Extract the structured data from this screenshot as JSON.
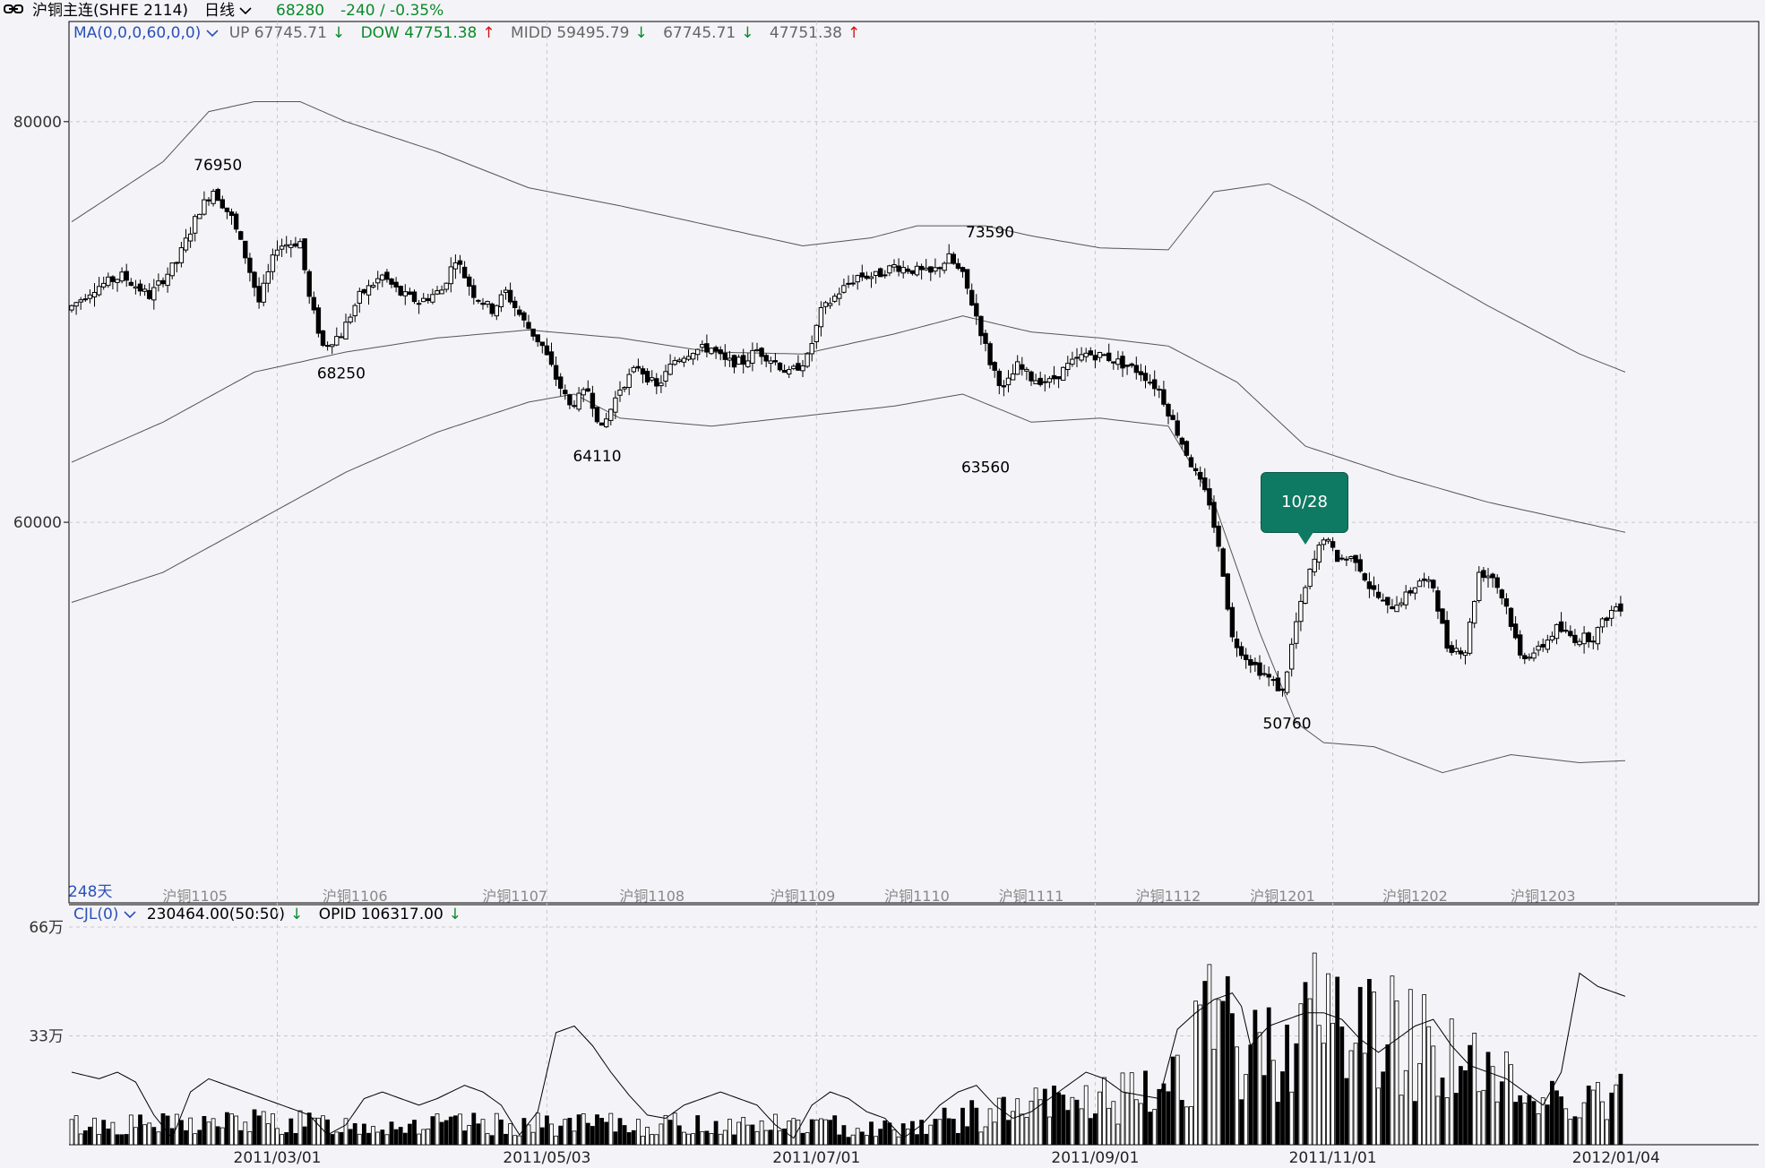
{
  "header": {
    "symbol_icon": "link-icon",
    "symbol": "沪铜主连(SHFE 2114)",
    "period": "日线",
    "price": "68280",
    "change": "-240 / -0.35%"
  },
  "price_legend": {
    "indicator": "MA(0,0,0,60,0,0)",
    "up": "UP 67745.71",
    "dow": "DOW 47751.38",
    "midd": "MIDD 59495.79",
    "v1": "67745.71",
    "v2": "47751.38"
  },
  "volume_legend": {
    "indicator": "CJL(0)",
    "vol": "230464.00(50:50)",
    "opid": "OPID 106317.00"
  },
  "days_label": "248天",
  "tooltip": "10/28",
  "colors": {
    "up_candle": "#ffffff",
    "down_candle": "#000000",
    "band": "#555555",
    "grid": "#c8c8c8",
    "tooltip": "#0f7a63"
  },
  "chart_data": {
    "type": "candlestick",
    "y_ticks": [
      "80000",
      "60000"
    ],
    "ylim": [
      41000,
      85000
    ],
    "volume_ticks": [
      "66万",
      "33万"
    ],
    "volume_ylim": [
      0,
      66
    ],
    "contract_labels": [
      {
        "day": 27,
        "label": "沪铜1105"
      },
      {
        "day": 62,
        "label": "沪铜1106"
      },
      {
        "day": 97,
        "label": "沪铜1107"
      },
      {
        "day": 127,
        "label": "沪铜1108"
      },
      {
        "day": 160,
        "label": "沪铜1109"
      },
      {
        "day": 185,
        "label": "沪铜1110"
      },
      {
        "day": 210,
        "label": "沪铜1111"
      },
      {
        "day": 240,
        "label": "沪铜1112"
      },
      {
        "day": 265,
        "label": "沪铜1201"
      },
      {
        "day": 294,
        "label": "沪铜1202"
      },
      {
        "day": 322,
        "label": "沪铜1203"
      }
    ],
    "date_labels": [
      {
        "day": 45,
        "label": "2011/03/01"
      },
      {
        "day": 104,
        "label": "2011/05/03"
      },
      {
        "day": 163,
        "label": "2011/07/01"
      },
      {
        "day": 224,
        "label": "2011/09/01"
      },
      {
        "day": 276,
        "label": "2011/11/01"
      },
      {
        "day": 338,
        "label": "2012/01/04"
      }
    ],
    "annotations": [
      {
        "day": 32,
        "price": 76950,
        "label": "76950",
        "pos": "above"
      },
      {
        "day": 59,
        "price": 68250,
        "label": "68250",
        "pos": "below"
      },
      {
        "day": 115,
        "price": 64110,
        "label": "64110",
        "pos": "below"
      },
      {
        "day": 201,
        "price": 73590,
        "label": "73590",
        "pos": "above"
      },
      {
        "day": 200,
        "price": 63560,
        "label": "63560",
        "pos": "below"
      },
      {
        "day": 266,
        "price": 50760,
        "label": "50760",
        "pos": "below"
      }
    ],
    "anchors": [
      [
        0,
        70600
      ],
      [
        6,
        71700
      ],
      [
        12,
        72300
      ],
      [
        18,
        71300
      ],
      [
        24,
        73000
      ],
      [
        29,
        75600
      ],
      [
        32,
        76600
      ],
      [
        36,
        75200
      ],
      [
        39,
        73300
      ],
      [
        42,
        71000
      ],
      [
        46,
        73800
      ],
      [
        51,
        74000
      ],
      [
        53,
        71200
      ],
      [
        56,
        68800
      ],
      [
        60,
        69400
      ],
      [
        64,
        71300
      ],
      [
        69,
        72300
      ],
      [
        73,
        71400
      ],
      [
        77,
        71000
      ],
      [
        82,
        71600
      ],
      [
        85,
        73200
      ],
      [
        89,
        71400
      ],
      [
        93,
        70600
      ],
      [
        96,
        71500
      ],
      [
        100,
        70000
      ],
      [
        104,
        68800
      ],
      [
        107,
        67200
      ],
      [
        110,
        65800
      ],
      [
        114,
        66600
      ],
      [
        117,
        64600
      ],
      [
        121,
        66700
      ],
      [
        125,
        67800
      ],
      [
        129,
        66700
      ],
      [
        133,
        68100
      ],
      [
        137,
        68600
      ],
      [
        141,
        68700
      ],
      [
        144,
        68000
      ],
      [
        148,
        68000
      ],
      [
        151,
        68600
      ],
      [
        155,
        68000
      ],
      [
        158,
        67400
      ],
      [
        162,
        68200
      ],
      [
        165,
        70500
      ],
      [
        169,
        71500
      ],
      [
        173,
        72300
      ],
      [
        177,
        72300
      ],
      [
        181,
        72800
      ],
      [
        185,
        72600
      ],
      [
        189,
        72400
      ],
      [
        193,
        73200
      ],
      [
        196,
        72300
      ],
      [
        199,
        70300
      ],
      [
        202,
        68000
      ],
      [
        205,
        66600
      ],
      [
        208,
        67800
      ],
      [
        211,
        67200
      ],
      [
        215,
        67000
      ],
      [
        219,
        67800
      ],
      [
        223,
        68400
      ],
      [
        227,
        68300
      ],
      [
        231,
        67900
      ],
      [
        235,
        67500
      ],
      [
        239,
        66600
      ],
      [
        243,
        64500
      ],
      [
        247,
        62400
      ],
      [
        250,
        61000
      ],
      [
        253,
        57500
      ],
      [
        255,
        54200
      ],
      [
        258,
        53300
      ],
      [
        261,
        52600
      ],
      [
        264,
        52000
      ],
      [
        266,
        51500
      ],
      [
        269,
        55000
      ],
      [
        272,
        57500
      ],
      [
        275,
        59300
      ],
      [
        278,
        58200
      ],
      [
        282,
        58200
      ],
      [
        285,
        56800
      ],
      [
        289,
        55700
      ],
      [
        293,
        56300
      ],
      [
        296,
        57100
      ],
      [
        299,
        56800
      ],
      [
        302,
        53800
      ],
      [
        306,
        53600
      ],
      [
        309,
        57500
      ],
      [
        312,
        57300
      ],
      [
        315,
        55800
      ],
      [
        318,
        53300
      ],
      [
        322,
        53600
      ],
      [
        326,
        54700
      ],
      [
        330,
        54200
      ],
      [
        334,
        54300
      ],
      [
        337,
        55300
      ],
      [
        339,
        55800
      ]
    ],
    "band_up": [
      [
        0,
        75000
      ],
      [
        10,
        76500
      ],
      [
        20,
        78000
      ],
      [
        30,
        80500
      ],
      [
        40,
        81000
      ],
      [
        50,
        81000
      ],
      [
        60,
        80000
      ],
      [
        80,
        78500
      ],
      [
        100,
        76700
      ],
      [
        120,
        75800
      ],
      [
        140,
        74800
      ],
      [
        160,
        73800
      ],
      [
        175,
        74200
      ],
      [
        185,
        74800
      ],
      [
        200,
        74800
      ],
      [
        210,
        74300
      ],
      [
        225,
        73700
      ],
      [
        240,
        73600
      ],
      [
        250,
        76500
      ],
      [
        262,
        76900
      ],
      [
        270,
        76000
      ],
      [
        290,
        73400
      ],
      [
        310,
        70800
      ],
      [
        330,
        68400
      ],
      [
        340,
        67500
      ]
    ],
    "band_mid": [
      [
        0,
        63000
      ],
      [
        20,
        65000
      ],
      [
        40,
        67500
      ],
      [
        60,
        68500
      ],
      [
        80,
        69200
      ],
      [
        100,
        69600
      ],
      [
        120,
        69200
      ],
      [
        140,
        68500
      ],
      [
        160,
        68400
      ],
      [
        180,
        69400
      ],
      [
        195,
        70300
      ],
      [
        210,
        69500
      ],
      [
        225,
        69200
      ],
      [
        240,
        68800
      ],
      [
        255,
        67000
      ],
      [
        270,
        63800
      ],
      [
        290,
        62300
      ],
      [
        310,
        61000
      ],
      [
        330,
        60000
      ],
      [
        340,
        59500
      ]
    ],
    "band_low": [
      [
        0,
        56000
      ],
      [
        20,
        57500
      ],
      [
        40,
        60000
      ],
      [
        60,
        62500
      ],
      [
        80,
        64500
      ],
      [
        100,
        66000
      ],
      [
        110,
        66400
      ],
      [
        120,
        65200
      ],
      [
        140,
        64800
      ],
      [
        160,
        65300
      ],
      [
        180,
        65800
      ],
      [
        195,
        66400
      ],
      [
        210,
        65000
      ],
      [
        225,
        65200
      ],
      [
        240,
        64800
      ],
      [
        250,
        61000
      ],
      [
        260,
        54500
      ],
      [
        268,
        50000
      ],
      [
        274,
        49000
      ],
      [
        285,
        48800
      ],
      [
        300,
        47500
      ],
      [
        315,
        48400
      ],
      [
        330,
        48000
      ],
      [
        340,
        48100
      ]
    ],
    "volume_anchors": [
      [
        0,
        6
      ],
      [
        20,
        6
      ],
      [
        40,
        7
      ],
      [
        60,
        6
      ],
      [
        80,
        6
      ],
      [
        100,
        6
      ],
      [
        120,
        6
      ],
      [
        140,
        6
      ],
      [
        160,
        6
      ],
      [
        180,
        5
      ],
      [
        200,
        9
      ],
      [
        215,
        12
      ],
      [
        225,
        14
      ],
      [
        235,
        14
      ],
      [
        240,
        20
      ],
      [
        245,
        28
      ],
      [
        250,
        36
      ],
      [
        255,
        30
      ],
      [
        260,
        27
      ],
      [
        265,
        33
      ],
      [
        270,
        38
      ],
      [
        275,
        40
      ],
      [
        280,
        36
      ],
      [
        285,
        35
      ],
      [
        290,
        33
      ],
      [
        295,
        32
      ],
      [
        300,
        30
      ],
      [
        305,
        24
      ],
      [
        310,
        20
      ],
      [
        315,
        18
      ],
      [
        320,
        14
      ],
      [
        325,
        15
      ],
      [
        330,
        15
      ],
      [
        335,
        14
      ],
      [
        339,
        14
      ]
    ],
    "opid_anchors": [
      [
        0,
        22
      ],
      [
        6,
        20
      ],
      [
        10,
        22
      ],
      [
        14,
        19
      ],
      [
        18,
        9
      ],
      [
        22,
        2
      ],
      [
        26,
        16
      ],
      [
        30,
        20
      ],
      [
        34,
        18
      ],
      [
        40,
        15
      ],
      [
        46,
        12
      ],
      [
        52,
        9
      ],
      [
        56,
        3
      ],
      [
        60,
        6
      ],
      [
        64,
        14
      ],
      [
        68,
        16
      ],
      [
        72,
        14
      ],
      [
        76,
        12
      ],
      [
        80,
        14
      ],
      [
        86,
        18
      ],
      [
        90,
        16
      ],
      [
        94,
        12
      ],
      [
        98,
        3
      ],
      [
        102,
        10
      ],
      [
        106,
        34
      ],
      [
        110,
        36
      ],
      [
        114,
        30
      ],
      [
        118,
        22
      ],
      [
        122,
        15
      ],
      [
        126,
        9
      ],
      [
        130,
        8
      ],
      [
        134,
        12
      ],
      [
        138,
        14
      ],
      [
        142,
        16
      ],
      [
        146,
        14
      ],
      [
        150,
        12
      ],
      [
        154,
        6
      ],
      [
        158,
        2
      ],
      [
        162,
        12
      ],
      [
        166,
        16
      ],
      [
        170,
        14
      ],
      [
        174,
        10
      ],
      [
        178,
        8
      ],
      [
        182,
        2
      ],
      [
        186,
        6
      ],
      [
        190,
        12
      ],
      [
        194,
        16
      ],
      [
        198,
        18
      ],
      [
        202,
        12
      ],
      [
        206,
        8
      ],
      [
        210,
        10
      ],
      [
        214,
        14
      ],
      [
        218,
        18
      ],
      [
        222,
        22
      ],
      [
        226,
        20
      ],
      [
        230,
        16
      ],
      [
        234,
        15
      ],
      [
        238,
        14
      ],
      [
        242,
        35
      ],
      [
        246,
        40
      ],
      [
        250,
        44
      ],
      [
        254,
        46
      ],
      [
        256,
        42
      ],
      [
        258,
        30
      ],
      [
        262,
        36
      ],
      [
        266,
        38
      ],
      [
        270,
        40
      ],
      [
        274,
        40
      ],
      [
        278,
        38
      ],
      [
        282,
        32
      ],
      [
        286,
        28
      ],
      [
        290,
        32
      ],
      [
        294,
        36
      ],
      [
        298,
        38
      ],
      [
        302,
        30
      ],
      [
        306,
        24
      ],
      [
        310,
        22
      ],
      [
        314,
        20
      ],
      [
        318,
        16
      ],
      [
        322,
        12
      ],
      [
        326,
        22
      ],
      [
        330,
        52
      ],
      [
        334,
        48
      ],
      [
        338,
        46
      ],
      [
        342,
        44
      ],
      [
        346,
        42
      ],
      [
        350,
        40
      ]
    ]
  }
}
